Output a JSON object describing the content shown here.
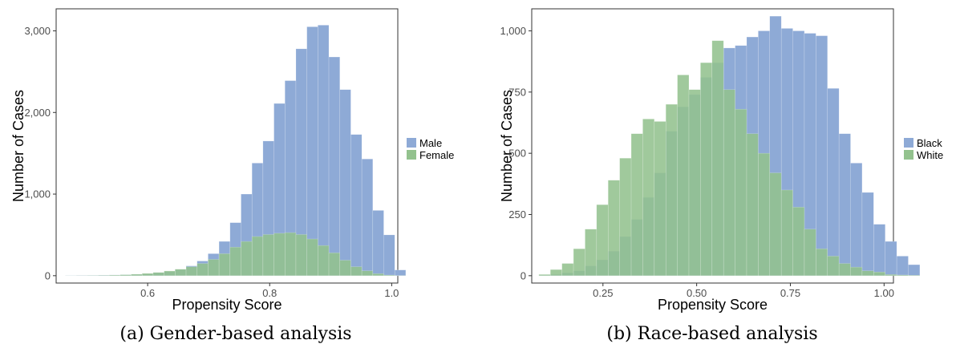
{
  "chart_data": [
    {
      "type": "histogram",
      "caption": "(a) Gender-based analysis",
      "xlabel": "Propensity Score",
      "ylabel": "Number of Cases",
      "xlim": [
        0.45,
        1.01
      ],
      "ylim": [
        -90,
        3270
      ],
      "xticks": [
        {
          "value": 0.6,
          "label": "0.6"
        },
        {
          "value": 0.8,
          "label": "0.8"
        },
        {
          "value": 1.0,
          "label": "1.0"
        }
      ],
      "yticks": [
        {
          "value": 0,
          "label": "0"
        },
        {
          "value": 1000,
          "label": "1,000"
        },
        {
          "value": 2000,
          "label": "2,000"
        },
        {
          "value": 3000,
          "label": "3,000"
        }
      ],
      "bin_start": 0.465,
      "bin_width": 0.018,
      "grid": false,
      "legend_position": "right",
      "series": [
        {
          "name": "Male",
          "color": "#8eaad6",
          "values": [
            3,
            4,
            5,
            7,
            9,
            12,
            16,
            22,
            35,
            50,
            75,
            120,
            180,
            270,
            420,
            650,
            1000,
            1380,
            1650,
            2110,
            2390,
            2780,
            3050,
            3070,
            2680,
            2280,
            1730,
            1430,
            800,
            500,
            70
          ]
        },
        {
          "name": "Female",
          "color": "#93c28e",
          "values": [
            1,
            2,
            3,
            5,
            8,
            12,
            18,
            28,
            40,
            58,
            80,
            110,
            150,
            200,
            270,
            350,
            420,
            480,
            505,
            520,
            528,
            505,
            450,
            370,
            280,
            190,
            110,
            60,
            25,
            8,
            2
          ]
        }
      ]
    },
    {
      "type": "histogram",
      "caption": "(b) Race-based analysis",
      "xlabel": "Propensity Score",
      "ylabel": "Number of Cases",
      "xlim": [
        0.06,
        1.025
      ],
      "ylim": [
        -30,
        1090
      ],
      "xticks": [
        {
          "value": 0.25,
          "label": "0.25"
        },
        {
          "value": 0.5,
          "label": "0.50"
        },
        {
          "value": 0.75,
          "label": "0.75"
        },
        {
          "value": 1.0,
          "label": "1.00"
        }
      ],
      "yticks": [
        {
          "value": 0,
          "label": "0"
        },
        {
          "value": 250,
          "label": "250"
        },
        {
          "value": 500,
          "label": "500"
        },
        {
          "value": 750,
          "label": "750"
        },
        {
          "value": 1000,
          "label": "1,000"
        }
      ],
      "bin_start": 0.079,
      "bin_width": 0.0308,
      "grid": false,
      "legend_position": "right",
      "series": [
        {
          "name": "Black",
          "color": "#8eaad6",
          "values": [
            2,
            5,
            12,
            20,
            40,
            65,
            100,
            160,
            230,
            320,
            420,
            590,
            690,
            740,
            810,
            870,
            930,
            940,
            975,
            1000,
            1060,
            1010,
            1000,
            990,
            980,
            765,
            580,
            460,
            340,
            210,
            140,
            80,
            45
          ]
        },
        {
          "name": "White",
          "color": "#93c28e",
          "values": [
            5,
            25,
            50,
            110,
            190,
            290,
            390,
            480,
            580,
            640,
            630,
            700,
            820,
            760,
            870,
            960,
            760,
            680,
            580,
            500,
            420,
            350,
            280,
            190,
            110,
            80,
            50,
            35,
            20,
            15,
            5,
            3,
            2
          ]
        }
      ]
    }
  ]
}
